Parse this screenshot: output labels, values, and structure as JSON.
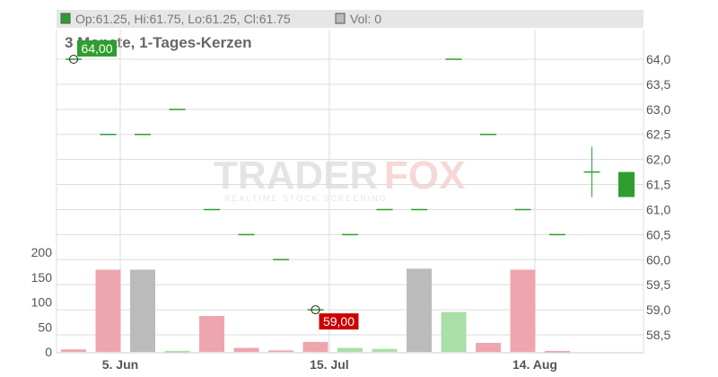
{
  "legend": {
    "ohlc_text": "Op:61.25, Hi:61.75, Lo:61.25, Cl:61.75",
    "vol_text": "Vol: 0"
  },
  "subtitle": "3 Monate, 1-Tages-Kerzen",
  "watermark": {
    "brand_main": "TRADER",
    "brand_accent": "FOX",
    "tagline": "REALTIME STOCK SCREENING"
  },
  "colors": {
    "up": "#2e9e2e",
    "down": "#cc0000",
    "vol_up": "#aadfa8",
    "vol_down": "#eea6ae",
    "vol_neutral": "#bbbbbb",
    "legend_bg": "#e6e6e6",
    "grid": "#dcdcdc",
    "axis_text": "#555555",
    "high_label_bg": "#2e9e2e",
    "low_label_bg": "#cc0000"
  },
  "chart_data": {
    "type": "candlestick",
    "price_axis": {
      "range": [
        58.3,
        64.3
      ],
      "ticks": [
        "58,5",
        "59,0",
        "59,5",
        "60,0",
        "60,5",
        "61,0",
        "61,5",
        "62,0",
        "62,5",
        "63,0",
        "63,5",
        "64,0"
      ]
    },
    "volume_axis": {
      "range": [
        0,
        200
      ],
      "ticks": [
        "0",
        "50",
        "100",
        "150",
        "200"
      ]
    },
    "x_labels": [
      {
        "text": "5. Jun",
        "index": 1.35
      },
      {
        "text": "15. Jul",
        "index": 7.4
      },
      {
        "text": "14. Aug",
        "index": 13.35
      }
    ],
    "candles": [
      {
        "o": 64.0,
        "h": 64.0,
        "l": 64.0,
        "c": 64.0,
        "v": 5
      },
      {
        "o": 62.5,
        "h": 62.5,
        "l": 62.5,
        "c": 62.5,
        "v": 165
      },
      {
        "o": 62.5,
        "h": 62.5,
        "l": 62.5,
        "c": 62.5,
        "v": 165
      },
      {
        "o": 63.0,
        "h": 63.0,
        "l": 63.0,
        "c": 63.0,
        "v": 2
      },
      {
        "o": 61.0,
        "h": 61.0,
        "l": 61.0,
        "c": 61.0,
        "v": 72
      },
      {
        "o": 60.5,
        "h": 60.5,
        "l": 60.5,
        "c": 60.5,
        "v": 8
      },
      {
        "o": 60.0,
        "h": 60.0,
        "l": 60.0,
        "c": 60.0,
        "v": 3
      },
      {
        "o": 59.0,
        "h": 59.0,
        "l": 59.0,
        "c": 59.0,
        "v": 20
      },
      {
        "o": 60.5,
        "h": 60.5,
        "l": 60.5,
        "c": 60.5,
        "v": 8
      },
      {
        "o": 61.0,
        "h": 61.0,
        "l": 61.0,
        "c": 61.0,
        "v": 6
      },
      {
        "o": 61.0,
        "h": 61.0,
        "l": 61.0,
        "c": 61.0,
        "v": 167
      },
      {
        "o": 64.0,
        "h": 64.0,
        "l": 64.0,
        "c": 64.0,
        "v": 80
      },
      {
        "o": 62.5,
        "h": 62.5,
        "l": 62.5,
        "c": 62.5,
        "v": 18
      },
      {
        "o": 61.0,
        "h": 61.0,
        "l": 61.0,
        "c": 61.0,
        "v": 165
      },
      {
        "o": 60.5,
        "h": 60.5,
        "l": 60.5,
        "c": 60.5,
        "v": 2
      },
      {
        "o": 61.75,
        "h": 62.25,
        "l": 61.25,
        "c": 61.75,
        "v": 0
      },
      {
        "o": 61.25,
        "h": 61.75,
        "l": 61.25,
        "c": 61.75,
        "v": 0
      }
    ],
    "volume_colors": [
      "down",
      "down",
      "neutral",
      "up",
      "down",
      "down",
      "down",
      "down",
      "up",
      "up",
      "neutral",
      "up",
      "down",
      "down",
      "down",
      "down",
      "down"
    ],
    "high_marker": {
      "label": "64,00",
      "value": 64.0,
      "index": 0
    },
    "low_marker": {
      "label": "59,00",
      "value": 59.0,
      "index": 7
    }
  }
}
